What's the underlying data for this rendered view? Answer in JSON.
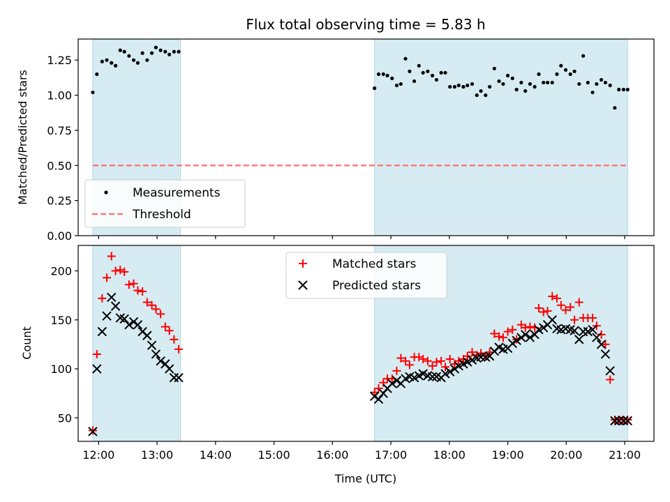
{
  "figure": {
    "title": "Flux total observing time = 5.83 h"
  },
  "chart_data": [
    {
      "type": "scatter",
      "panel": "top",
      "ylabel": "Matched/Predicted stars",
      "ylim": [
        0,
        1.4
      ],
      "yticks": [
        0.0,
        0.25,
        0.5,
        0.75,
        1.0,
        1.25
      ],
      "ytick_labels": [
        "0.00",
        "0.25",
        "0.50",
        "0.75",
        "1.00",
        "1.25"
      ],
      "xlim": [
        11.65,
        21.5
      ],
      "xticks": [
        12,
        13,
        14,
        15,
        16,
        17,
        18,
        19,
        20,
        21
      ],
      "shaded_spans": [
        [
          11.9,
          13.4
        ],
        [
          16.72,
          21.05
        ]
      ],
      "threshold": 0.5,
      "legend": {
        "placement": "lower-left",
        "entries": [
          {
            "label": "Measurements",
            "color": "#000000",
            "marker": "dot"
          },
          {
            "label": "Threshold",
            "color": "#ff6f6f",
            "marker": "dashed-line"
          }
        ]
      },
      "series": [
        {
          "name": "Measurements",
          "color": "#000000",
          "x": [
            11.9,
            11.97,
            12.06,
            12.14,
            12.22,
            12.29,
            12.37,
            12.44,
            12.52,
            12.6,
            12.67,
            12.75,
            12.83,
            12.91,
            12.98,
            13.06,
            13.14,
            13.21,
            13.29,
            13.37,
            16.72,
            16.79,
            16.87,
            16.94,
            17.02,
            17.1,
            17.17,
            17.25,
            17.32,
            17.4,
            17.48,
            17.55,
            17.63,
            17.71,
            17.78,
            17.86,
            17.93,
            18.01,
            18.09,
            18.16,
            18.24,
            18.31,
            18.39,
            18.47,
            18.54,
            18.62,
            18.69,
            18.77,
            18.85,
            18.92,
            19.0,
            19.08,
            19.15,
            19.23,
            19.3,
            19.38,
            19.46,
            19.53,
            19.61,
            19.68,
            19.76,
            19.84,
            19.91,
            19.99,
            20.07,
            20.14,
            20.22,
            20.29,
            20.37,
            20.45,
            20.52,
            20.6,
            20.67,
            20.75,
            20.83,
            20.9,
            20.98,
            21.05
          ],
          "y": [
            1.02,
            1.15,
            1.24,
            1.25,
            1.23,
            1.21,
            1.32,
            1.31,
            1.28,
            1.25,
            1.23,
            1.3,
            1.25,
            1.3,
            1.34,
            1.32,
            1.31,
            1.29,
            1.31,
            1.31,
            1.05,
            1.15,
            1.15,
            1.14,
            1.12,
            1.07,
            1.08,
            1.26,
            1.17,
            1.1,
            1.21,
            1.16,
            1.17,
            1.14,
            1.11,
            1.16,
            1.16,
            1.06,
            1.06,
            1.07,
            1.06,
            1.07,
            1.08,
            1.0,
            1.03,
            1.0,
            1.06,
            1.19,
            1.1,
            1.08,
            1.14,
            1.12,
            1.04,
            1.09,
            1.03,
            1.08,
            1.06,
            1.15,
            1.09,
            1.09,
            1.09,
            1.15,
            1.21,
            1.18,
            1.15,
            1.17,
            1.08,
            1.28,
            1.09,
            1.02,
            1.08,
            1.11,
            1.09,
            1.07,
            0.91,
            1.04,
            1.04,
            1.04
          ]
        }
      ]
    },
    {
      "type": "scatter",
      "panel": "bottom",
      "ylabel": "Count",
      "xlabel": "Time (UTC)",
      "ylim": [
        26,
        226
      ],
      "yticks": [
        50,
        100,
        150,
        200
      ],
      "ytick_labels": [
        "50",
        "100",
        "150",
        "200"
      ],
      "xlim": [
        11.65,
        21.5
      ],
      "xticks": [
        12,
        13,
        14,
        15,
        16,
        17,
        18,
        19,
        20,
        21
      ],
      "xtick_labels": [
        "12:00",
        "13:00",
        "14:00",
        "15:00",
        "16:00",
        "17:00",
        "18:00",
        "19:00",
        "20:00",
        "21:00"
      ],
      "shaded_spans": [
        [
          11.9,
          13.4
        ],
        [
          16.72,
          21.05
        ]
      ],
      "legend": {
        "placement": "upper-center",
        "entries": [
          {
            "label": "Matched stars",
            "color": "#ff0000",
            "marker": "plus"
          },
          {
            "label": "Predicted stars",
            "color": "#000000",
            "marker": "x"
          }
        ]
      },
      "series": [
        {
          "name": "Matched stars",
          "color": "#ff0000",
          "marker": "plus",
          "x": [
            11.9,
            11.97,
            12.06,
            12.14,
            12.22,
            12.29,
            12.37,
            12.44,
            12.52,
            12.6,
            12.67,
            12.75,
            12.83,
            12.91,
            12.98,
            13.06,
            13.14,
            13.21,
            13.29,
            13.37,
            16.72,
            16.79,
            16.87,
            16.94,
            17.02,
            17.1,
            17.17,
            17.25,
            17.32,
            17.4,
            17.48,
            17.55,
            17.63,
            17.71,
            17.78,
            17.86,
            17.93,
            18.01,
            18.09,
            18.16,
            18.24,
            18.31,
            18.39,
            18.47,
            18.54,
            18.62,
            18.69,
            18.77,
            18.85,
            18.92,
            19.0,
            19.08,
            19.15,
            19.23,
            19.3,
            19.38,
            19.46,
            19.53,
            19.61,
            19.68,
            19.76,
            19.84,
            19.91,
            19.99,
            20.07,
            20.14,
            20.22,
            20.29,
            20.37,
            20.45,
            20.52,
            20.6,
            20.67,
            20.75,
            20.83,
            20.9,
            20.98,
            21.05
          ],
          "y": [
            37,
            115,
            172,
            193,
            215,
            200,
            201,
            199,
            186,
            187,
            180,
            179,
            168,
            165,
            161,
            156,
            143,
            139,
            130,
            120,
            76,
            80,
            86,
            90,
            90,
            98,
            111,
            108,
            104,
            112,
            112,
            110,
            108,
            103,
            107,
            108,
            102,
            110,
            105,
            108,
            110,
            113,
            117,
            114,
            116,
            113,
            117,
            136,
            133,
            132,
            138,
            140,
            130,
            145,
            142,
            143,
            142,
            162,
            158,
            159,
            174,
            172,
            165,
            160,
            163,
            150,
            168,
            152,
            152,
            152,
            144,
            135,
            125,
            89,
            48,
            48,
            48,
            48
          ]
        },
        {
          "name": "Predicted stars",
          "color": "#000000",
          "marker": "x",
          "x": [
            11.9,
            11.97,
            12.06,
            12.14,
            12.22,
            12.29,
            12.37,
            12.44,
            12.52,
            12.6,
            12.67,
            12.75,
            12.83,
            12.91,
            12.98,
            13.06,
            13.14,
            13.21,
            13.29,
            13.37,
            16.72,
            16.79,
            16.87,
            16.94,
            17.02,
            17.1,
            17.17,
            17.25,
            17.32,
            17.4,
            17.48,
            17.55,
            17.63,
            17.71,
            17.78,
            17.86,
            17.93,
            18.01,
            18.09,
            18.16,
            18.24,
            18.31,
            18.39,
            18.47,
            18.54,
            18.62,
            18.69,
            18.77,
            18.85,
            18.92,
            19.0,
            19.08,
            19.15,
            19.23,
            19.3,
            19.38,
            19.46,
            19.53,
            19.61,
            19.68,
            19.76,
            19.84,
            19.91,
            19.99,
            20.07,
            20.14,
            20.22,
            20.29,
            20.37,
            20.45,
            20.52,
            20.6,
            20.67,
            20.75,
            20.83,
            20.9,
            20.98,
            21.05
          ],
          "y": [
            36,
            100,
            138,
            154,
            173,
            164,
            152,
            151,
            145,
            148,
            145,
            138,
            134,
            124,
            115,
            108,
            105,
            100,
            91,
            91,
            72,
            69,
            75,
            80,
            85,
            88,
            85,
            90,
            92,
            91,
            93,
            95,
            93,
            92,
            92,
            91,
            95,
            97,
            100,
            103,
            105,
            107,
            109,
            111,
            112,
            112,
            113,
            118,
            122,
            120,
            121,
            126,
            129,
            132,
            135,
            132,
            135,
            140,
            142,
            145,
            150,
            141,
            140,
            141,
            140,
            139,
            130,
            138,
            138,
            140,
            132,
            125,
            115,
            98,
            47,
            47,
            47,
            47
          ]
        }
      ]
    }
  ]
}
